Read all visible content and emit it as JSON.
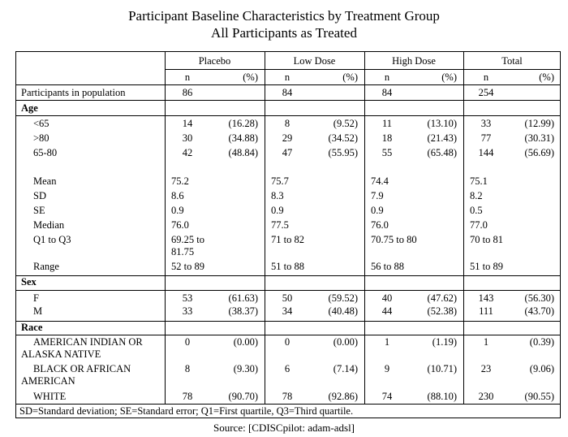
{
  "title": {
    "line1": "Participant Baseline Characteristics by Treatment Group",
    "line2": "All Participants as Treated"
  },
  "groups": [
    "Placebo",
    "Low Dose",
    "High Dose",
    "Total"
  ],
  "subheaders": {
    "n": "n",
    "pct": "(%)"
  },
  "participants": {
    "label": "Participants in population",
    "values": [
      "86",
      "84",
      "84",
      "254"
    ]
  },
  "sections": {
    "age": "Age",
    "sex": "Sex",
    "race": "Race"
  },
  "age_rows": [
    {
      "label": "<65",
      "cells": [
        [
          "14",
          "(16.28)"
        ],
        [
          "8",
          "(9.52)"
        ],
        [
          "11",
          "(13.10)"
        ],
        [
          "33",
          "(12.99)"
        ]
      ]
    },
    {
      "label": ">80",
      "cells": [
        [
          "30",
          "(34.88)"
        ],
        [
          "29",
          "(34.52)"
        ],
        [
          "18",
          "(21.43)"
        ],
        [
          "77",
          "(30.31)"
        ]
      ]
    },
    {
      "label": "65-80",
      "cells": [
        [
          "42",
          "(48.84)"
        ],
        [
          "47",
          "(55.95)"
        ],
        [
          "55",
          "(65.48)"
        ],
        [
          "144",
          "(56.69)"
        ]
      ]
    }
  ],
  "age_stats": [
    {
      "label": "Mean",
      "values": [
        "75.2",
        "75.7",
        "74.4",
        "75.1"
      ]
    },
    {
      "label": "SD",
      "values": [
        "8.6",
        "8.3",
        "7.9",
        "8.2"
      ]
    },
    {
      "label": "SE",
      "values": [
        "0.9",
        "0.9",
        "0.9",
        "0.5"
      ]
    },
    {
      "label": "Median",
      "values": [
        "76.0",
        "77.5",
        "76.0",
        "77.0"
      ]
    },
    {
      "label": "Q1 to Q3",
      "values": [
        "69.25 to 81.75",
        "71 to 82",
        "70.75 to 80",
        "70 to 81"
      ]
    },
    {
      "label": "Range",
      "values": [
        "52 to 89",
        "51 to 88",
        "56 to 88",
        "51 to 89"
      ]
    }
  ],
  "sex_rows": [
    {
      "label": "F",
      "cells": [
        [
          "53",
          "(61.63)"
        ],
        [
          "50",
          "(59.52)"
        ],
        [
          "40",
          "(47.62)"
        ],
        [
          "143",
          "(56.30)"
        ]
      ]
    },
    {
      "label": "M",
      "cells": [
        [
          "33",
          "(38.37)"
        ],
        [
          "34",
          "(40.48)"
        ],
        [
          "44",
          "(52.38)"
        ],
        [
          "111",
          "(43.70)"
        ]
      ]
    }
  ],
  "race_rows": [
    {
      "label": "AMERICAN INDIAN OR ALASKA NATIVE",
      "cells": [
        [
          "0",
          "(0.00)"
        ],
        [
          "0",
          "(0.00)"
        ],
        [
          "1",
          "(1.19)"
        ],
        [
          "1",
          "(0.39)"
        ]
      ]
    },
    {
      "label": "BLACK OR AFRICAN AMERICAN",
      "cells": [
        [
          "8",
          "(9.30)"
        ],
        [
          "6",
          "(7.14)"
        ],
        [
          "9",
          "(10.71)"
        ],
        [
          "23",
          "(9.06)"
        ]
      ]
    },
    {
      "label": "WHITE",
      "cells": [
        [
          "78",
          "(90.70)"
        ],
        [
          "78",
          "(92.86)"
        ],
        [
          "74",
          "(88.10)"
        ],
        [
          "230",
          "(90.55)"
        ]
      ]
    }
  ],
  "footnote": "SD=Standard deviation; SE=Standard error; Q1=First quartile, Q3=Third quartile.",
  "source": "Source: [CDISCpilot: adam-adsl]"
}
